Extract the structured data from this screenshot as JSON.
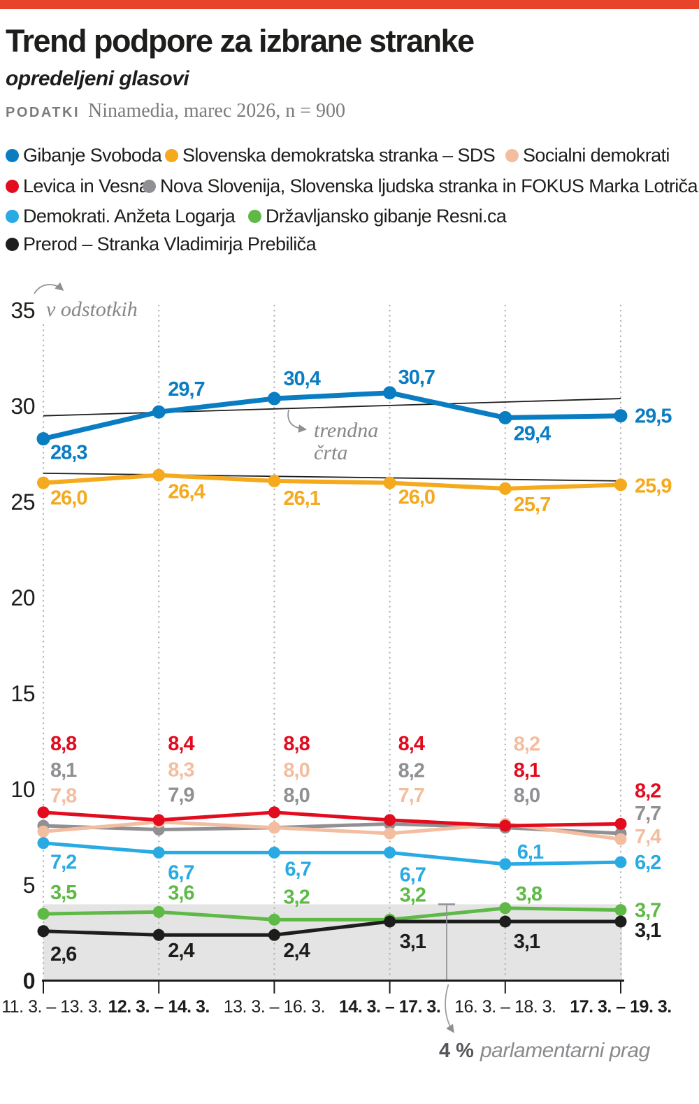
{
  "page": {
    "topbar_color": "#e8432b",
    "background": "#ffffff"
  },
  "header": {
    "title": "Trend podpore za izbrane stranke",
    "subtitle": "opredeljeni glasovi",
    "source_label": "PODATKI",
    "source_text": "Ninamedia, marec 2026, n = 900"
  },
  "legend": {
    "rows": [
      {
        "y": 222,
        "items": [
          {
            "label": "Gibanje Svoboda",
            "color": "#0a7dc2",
            "x": 8
          },
          {
            "label": "Slovenska demokratska stranka – SDS",
            "color": "#f5a91c",
            "x": 236
          },
          {
            "label": "Socialni demokrati",
            "color": "#f3bda0",
            "x": 723
          }
        ]
      },
      {
        "y": 266,
        "items": [
          {
            "label": "Levica in Vesna",
            "color": "#e30c1f",
            "x": 8
          },
          {
            "label": "Nova Slovenija, Slovenska ljudska stranka in FOKUS Marka Lotriča",
            "color": "#909094",
            "x": 204
          }
        ]
      },
      {
        "y": 309,
        "items": [
          {
            "label": "Demokrati. Anžeta Logarja",
            "color": "#29aae3",
            "x": 8
          },
          {
            "label": "Državljansko gibanje Resni.ca",
            "color": "#5eb946",
            "x": 355
          }
        ]
      },
      {
        "y": 349,
        "items": [
          {
            "label": "Prerod – Stranka Vladimirja Prebiliča",
            "color": "#1d1d1b",
            "x": 8
          }
        ]
      }
    ]
  },
  "chart_data": {
    "type": "line",
    "title": "Trend podpore za izbrane stranke",
    "unit_label": "v odstotkih",
    "trend_label_line1": "trendna",
    "trend_label_line2": "črta",
    "threshold": {
      "value": 4,
      "label_bold": "4 %",
      "label_italic": "parlamentarni prag"
    },
    "categories": [
      "11. 3. – 13. 3.",
      "12. 3. – 14. 3.",
      "13. 3. – 16. 3.",
      "14. 3. – 17. 3.",
      "16. 3. – 18. 3.",
      "17. 3. – 19. 3."
    ],
    "category_bold": [
      false,
      true,
      false,
      true,
      false,
      true
    ],
    "y_ticks": [
      35,
      30,
      25,
      20,
      15,
      10,
      5,
      0
    ],
    "ylim": [
      0,
      35
    ],
    "grid": "vertical-dotted",
    "legend_position": "top",
    "series": [
      {
        "name": "Nova Slovenija, Slovenska ljudska stranka in FOKUS Marka Lotriča",
        "short": "nsi-sls-fokus",
        "color": "#909094",
        "values": [
          8.1,
          7.9,
          8.0,
          8.2,
          8.0,
          7.7
        ],
        "labels": [
          "8,1",
          "7,9",
          "8,0",
          "8,2",
          "8,0",
          "7,7"
        ],
        "label_offsets": [
          [
            10,
            -70
          ],
          [
            13,
            -40
          ],
          [
            13,
            -37
          ],
          [
            12,
            -67
          ],
          [
            12,
            -37
          ],
          [
            20,
            -19
          ]
        ]
      },
      {
        "name": "Socialni demokrati",
        "short": "sd",
        "color": "#f3bda0",
        "values": [
          7.8,
          8.3,
          8.0,
          7.7,
          8.2,
          7.4
        ],
        "labels": [
          "7,8",
          "8,3",
          "8,0",
          "7,7",
          "8,2",
          "7,4"
        ],
        "label_offsets": [
          [
            10,
            -42
          ],
          [
            13,
            -65
          ],
          [
            13,
            -73
          ],
          [
            12,
            -45
          ],
          [
            12,
            -105
          ],
          [
            20,
            6
          ]
        ]
      },
      {
        "name": "Demokrati. Anžeta Logarja",
        "short": "demokrati",
        "color": "#29aae3",
        "values": [
          7.2,
          6.7,
          6.7,
          6.7,
          6.1,
          6.2
        ],
        "labels": [
          "7,2",
          "6,7",
          "6,7",
          "6,7",
          "6,1",
          "6,2"
        ],
        "label_offsets": [
          [
            10,
            37
          ],
          [
            13,
            38
          ],
          [
            15,
            33
          ],
          [
            14,
            41
          ],
          [
            17,
            -8
          ],
          [
            20,
            10
          ]
        ]
      },
      {
        "name": "Levica in Vesna",
        "short": "levica-vesna",
        "color": "#e30c1f",
        "values": [
          8.8,
          8.4,
          8.8,
          8.4,
          8.1,
          8.2
        ],
        "labels": [
          "8,8",
          "8,4",
          "8,8",
          "8,4",
          "8,1",
          "8,2"
        ],
        "label_offsets": [
          [
            10,
            -89
          ],
          [
            13,
            -100
          ],
          [
            13,
            -89
          ],
          [
            12,
            -100
          ],
          [
            12,
            -70
          ],
          [
            20,
            -38
          ]
        ]
      },
      {
        "name": "Državljansko gibanje Resni.ca",
        "short": "resnica",
        "color": "#5eb946",
        "values": [
          3.5,
          3.6,
          3.2,
          3.2,
          3.8,
          3.7
        ],
        "labels": [
          "3,5",
          "3,6",
          "3,2",
          "3,2",
          "3,8",
          "3,7"
        ],
        "label_offsets": [
          [
            10,
            -21
          ],
          [
            13,
            -18
          ],
          [
            13,
            -23
          ],
          [
            14,
            -26
          ],
          [
            15,
            -11
          ],
          [
            20,
            10
          ]
        ]
      },
      {
        "name": "Prerod – Stranka Vladimirja Prebiliča",
        "short": "prerod",
        "color": "#1d1d1b",
        "values": [
          2.6,
          2.4,
          2.4,
          3.1,
          3.1,
          3.1
        ],
        "labels": [
          "2,6",
          "2,4",
          "2,4",
          "3,1",
          "3,1",
          "3,1"
        ],
        "label_offsets": [
          [
            10,
            42
          ],
          [
            13,
            32
          ],
          [
            13,
            32
          ],
          [
            14,
            38
          ],
          [
            12,
            38
          ],
          [
            20,
            22
          ]
        ]
      },
      {
        "name": "Gibanje Svoboda",
        "short": "svoboda",
        "color": "#0a7dc2",
        "line_width": 7,
        "dot_r": 9.5,
        "values": [
          28.3,
          29.7,
          30.4,
          30.7,
          29.4,
          29.5
        ],
        "labels": [
          "28,3",
          "29,7",
          "30,4",
          "30,7",
          "29,4",
          "29,5"
        ],
        "label_offsets": [
          [
            10,
            29
          ],
          [
            13,
            -23
          ],
          [
            13,
            -19
          ],
          [
            12,
            -13
          ],
          [
            12,
            32
          ],
          [
            20,
            10
          ]
        ]
      },
      {
        "name": "Slovenska demokratska stranka – SDS",
        "short": "sds",
        "color": "#f5a91c",
        "line_width": 6,
        "dot_r": 9,
        "values": [
          26.0,
          26.4,
          26.1,
          26.0,
          25.7,
          25.9
        ],
        "labels": [
          "26,0",
          "26,4",
          "26,1",
          "26,0",
          "25,7",
          "25,9"
        ],
        "label_offsets": [
          [
            10,
            31
          ],
          [
            13,
            33
          ],
          [
            13,
            34
          ],
          [
            12,
            30
          ],
          [
            12,
            32
          ],
          [
            20,
            11
          ]
        ]
      }
    ],
    "trend_lines": [
      {
        "series": "Gibanje Svoboda",
        "from": 29.5,
        "to": 30.4
      },
      {
        "series": "Slovenska demokratska stranka – SDS",
        "from": 26.5,
        "to": 26.1
      }
    ]
  }
}
